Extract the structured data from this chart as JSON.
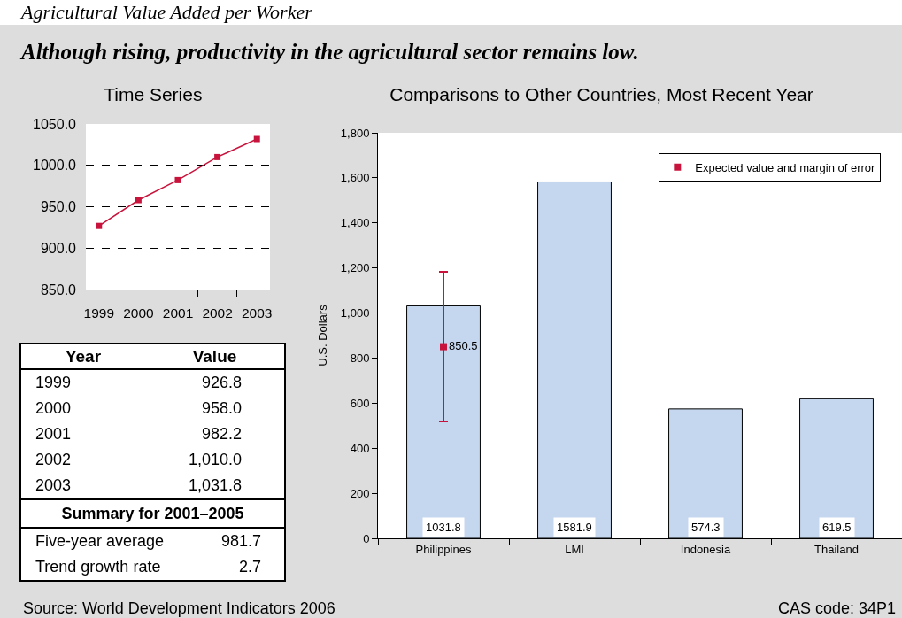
{
  "chart_data": [
    {
      "type": "other",
      "title": "Agricultural Value Added per Worker",
      "subtitle": "Although rising, productivity in the agricultural sector remains low.",
      "annotations": [
        "Source: World Development Indicators 2006",
        "CAS code: 34P1"
      ]
    },
    {
      "type": "line",
      "title": "Time Series",
      "categories": [
        "1999",
        "2000",
        "2001",
        "2002",
        "2003"
      ],
      "values": [
        926.8,
        958.0,
        982.2,
        1010.0,
        1031.8
      ],
      "color": "#c8143c",
      "marker": "square",
      "ylim": [
        850,
        1050
      ],
      "yticks": [
        {
          "value": 850,
          "label": "850.0"
        },
        {
          "value": 900,
          "label": "900.0"
        },
        {
          "value": 950,
          "label": "950.0"
        },
        {
          "value": 1000,
          "label": "1000.0"
        },
        {
          "value": 1050,
          "label": "1050.0"
        }
      ],
      "grid": "y"
    },
    {
      "type": "other",
      "annotations": [
        "Year",
        "Value",
        "1999 926.8",
        "2000 958.0",
        "2001 982.2",
        "2002 1,010.0",
        "2003 1,031.8",
        "Summary for 2001–2005",
        "Five-year average",
        "981.7",
        "Trend growth rate",
        "2.7"
      ]
    },
    {
      "type": "bar",
      "title": "Comparisons to Other Countries, Most Recent Year",
      "ylabel": "U.S. Dollars",
      "categories": [
        "Philippines",
        "LMI",
        "Indonesia",
        "Thailand"
      ],
      "series": [
        {
          "type": "bar",
          "color": "#c5d7ee",
          "values": [
            1031.8,
            1581.9,
            574.3,
            619.5
          ]
        },
        {
          "type": "scatter",
          "name": "Expected value and margin of error",
          "color": "#c8143c",
          "x": [
            "Philippines"
          ],
          "values": [
            850.5
          ],
          "errors": [
            [
              519,
              1183
            ]
          ],
          "marker": "square"
        }
      ],
      "ylim": [
        0,
        1800
      ],
      "yticks": [
        0,
        200,
        400,
        600,
        800,
        {
          "value": 1000,
          "label": "1,000"
        },
        {
          "value": 1200,
          "label": "1,200"
        },
        {
          "value": 1400,
          "label": "1,400"
        },
        {
          "value": 1600,
          "label": "1,600"
        },
        {
          "value": 1800,
          "label": "1,800"
        }
      ],
      "data_labels": true,
      "legend": "top right"
    }
  ]
}
